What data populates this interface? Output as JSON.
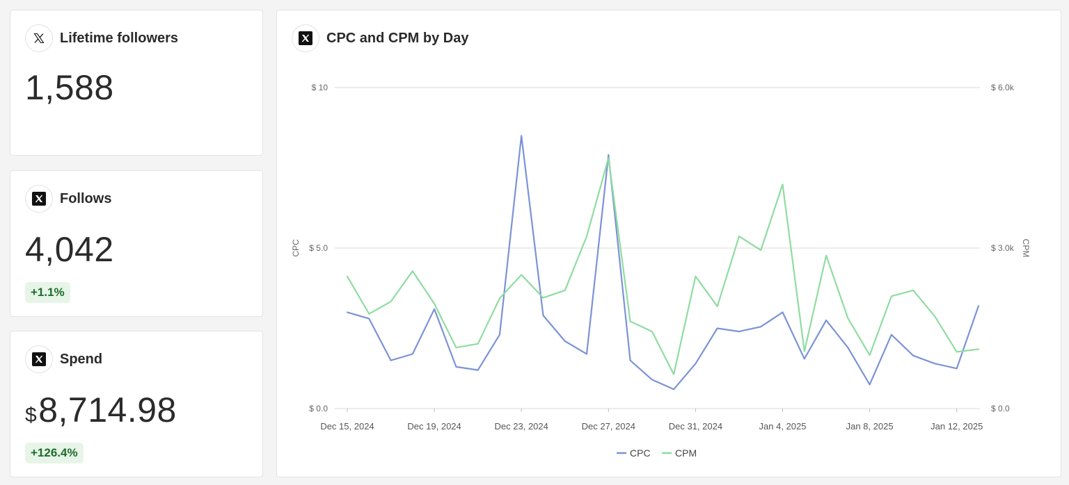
{
  "cards": {
    "lifetime": {
      "title": "Lifetime followers",
      "value": "1,588",
      "icon": "x-logo-outline-icon"
    },
    "follows": {
      "title": "Follows",
      "value": "4,042",
      "change": "+1.1%",
      "icon": "x-logo-filled-icon"
    },
    "spend": {
      "title": "Spend",
      "currency": "$",
      "value": "8,714.98",
      "change": "+126.4%",
      "icon": "x-logo-filled-icon"
    }
  },
  "chart_panel": {
    "title": "CPC and CPM by Day",
    "icon": "x-logo-filled-icon"
  },
  "chart_data": {
    "type": "line",
    "title": "CPC and CPM by Day",
    "x": [
      "2024-12-15",
      "2024-12-16",
      "2024-12-17",
      "2024-12-18",
      "2024-12-19",
      "2024-12-20",
      "2024-12-21",
      "2024-12-22",
      "2024-12-23",
      "2024-12-24",
      "2024-12-25",
      "2024-12-26",
      "2024-12-27",
      "2024-12-28",
      "2024-12-29",
      "2024-12-30",
      "2024-12-31",
      "2025-01-01",
      "2025-01-02",
      "2025-01-03",
      "2025-01-04",
      "2025-01-05",
      "2025-01-06",
      "2025-01-07",
      "2025-01-08",
      "2025-01-09",
      "2025-01-10",
      "2025-01-11",
      "2025-01-12",
      "2025-01-13"
    ],
    "x_tick_labels": [
      "Dec 15, 2024",
      "Dec 19, 2024",
      "Dec 23, 2024",
      "Dec 27, 2024",
      "Dec 31, 2024",
      "Jan 4, 2025",
      "Jan 8, 2025",
      "Jan 12, 2025"
    ],
    "x_tick_indices": [
      0,
      4,
      8,
      12,
      16,
      20,
      24,
      28
    ],
    "series": [
      {
        "name": "CPC",
        "axis": "left",
        "color": "#7b93d6",
        "values": [
          3.0,
          2.8,
          1.5,
          1.7,
          3.1,
          1.3,
          1.2,
          2.3,
          8.5,
          2.9,
          2.1,
          1.7,
          7.9,
          1.5,
          0.9,
          0.6,
          1.4,
          2.5,
          2.4,
          2.55,
          3.0,
          1.55,
          2.75,
          1.9,
          0.75,
          2.3,
          1.65,
          1.4,
          1.25,
          3.2
        ]
      },
      {
        "name": "CPM",
        "axis": "right",
        "color": "#8fdca0",
        "values": [
          2470,
          1770,
          2000,
          2570,
          1960,
          1140,
          1210,
          2060,
          2500,
          2070,
          2210,
          3220,
          4680,
          1630,
          1440,
          640,
          2470,
          1910,
          3220,
          2960,
          4190,
          1070,
          2860,
          1690,
          1000,
          2100,
          2210,
          1720,
          1060,
          1110
        ]
      }
    ],
    "left_axis": {
      "label": "CPC",
      "range": [
        0,
        10
      ],
      "ticks": [
        0,
        5,
        10
      ],
      "tick_labels": [
        "$ 0.0",
        "$ 5.0",
        "$ 10"
      ]
    },
    "right_axis": {
      "label": "CPM",
      "range": [
        0,
        6000
      ],
      "ticks": [
        0,
        3000,
        6000
      ],
      "tick_labels": [
        "$ 0.0",
        "$ 3.0k",
        "$ 6.0k"
      ]
    },
    "grid": true,
    "legend_position": "bottom-center"
  }
}
